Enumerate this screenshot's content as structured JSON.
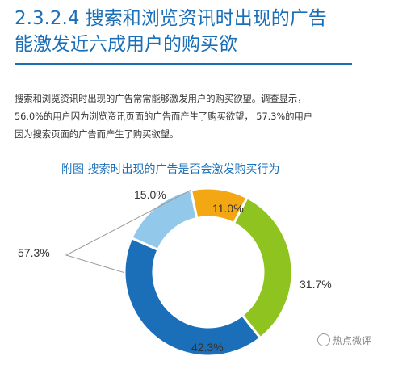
{
  "header": {
    "title_line1": "2.3.2.4 搜索和浏览资讯时出现的广告",
    "title_line2": "能激发近六成用户的购买欲"
  },
  "body": {
    "p1": "搜索和浏览资讯时出现的广告常常能够激发用户的购买欲望。调查显示，",
    "p2": "56.0%的用户因为浏览资讯页面的广告而产生了购买欲望， 57.3%的用户",
    "p3": "因为搜索页面的广告而产生了购买欲望。"
  },
  "chart_data": {
    "type": "pie",
    "title": "附图  搜索时出现的广告是否会激发购买行为",
    "donut": true,
    "slices": [
      {
        "label": "11.0%",
        "value": 11.0,
        "color": "#f3a813"
      },
      {
        "label": "31.7%",
        "value": 31.7,
        "color": "#8fc31f"
      },
      {
        "label": "42.3%",
        "value": 42.3,
        "color": "#1a6fb8"
      },
      {
        "label": "15.0%",
        "value": 15.0,
        "color": "#92c9ea"
      }
    ],
    "callout": {
      "label": "57.3%"
    }
  },
  "watermark": {
    "text": "热点微评",
    "icon": "wechat-icon"
  }
}
